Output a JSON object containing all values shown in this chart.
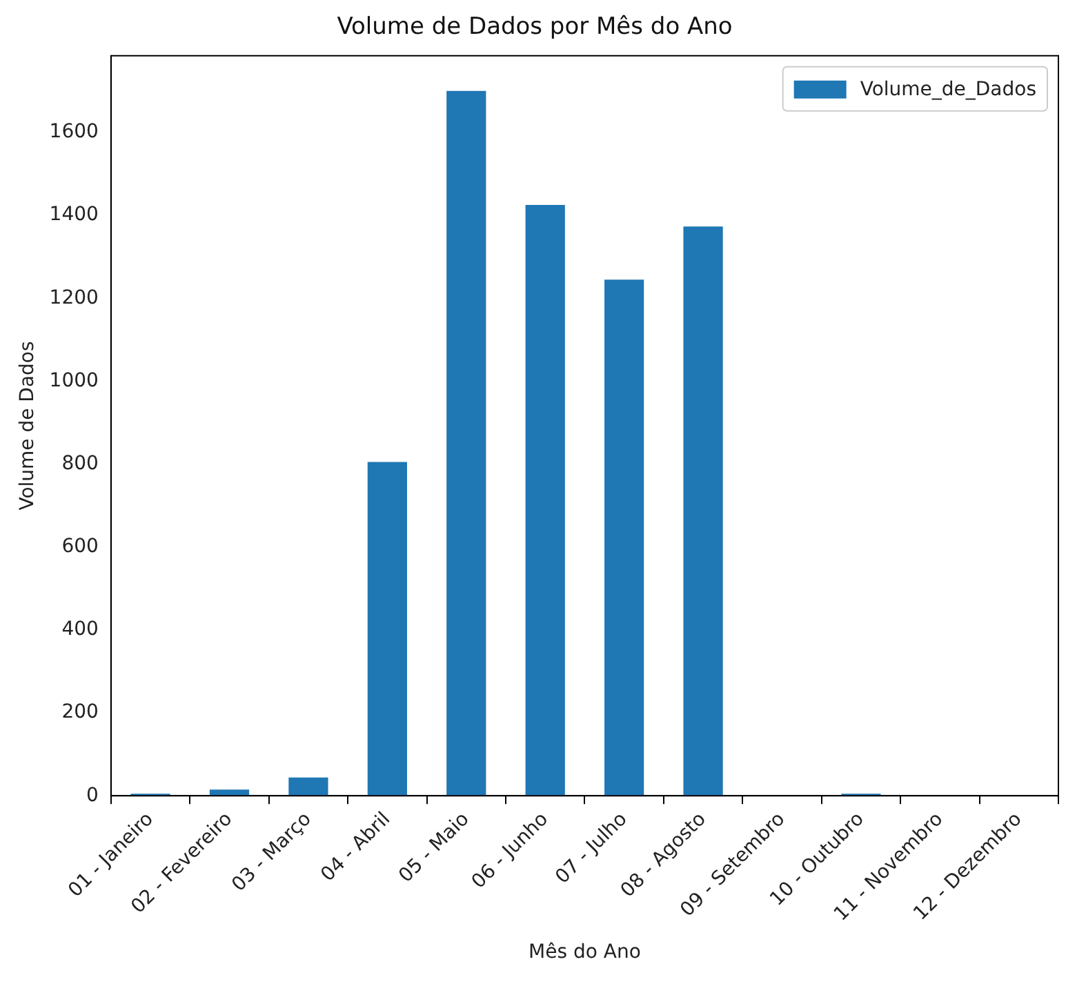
{
  "chart_data": {
    "type": "bar",
    "title": "Volume de Dados por Mês do Ano",
    "xlabel": "Mês do Ano",
    "ylabel": "Volume de Dados",
    "categories": [
      "01 - Janeiro",
      "02 - Fevereiro",
      "03 - Março",
      "04 - Abril",
      "05 - Maio",
      "06 - Junho",
      "07 - Julho",
      "08 - Agosto",
      "09 - Setembro",
      "10 - Outubro",
      "11 - Novembro",
      "12 - Dezembro"
    ],
    "series": [
      {
        "name": "Volume_de_Dados",
        "color": "#1f77b4",
        "values": [
          5,
          15,
          44,
          805,
          1700,
          1425,
          1245,
          1373,
          0,
          5,
          0,
          0
        ]
      }
    ],
    "ylim": [
      0,
      1785
    ],
    "yticks": [
      0,
      200,
      400,
      600,
      800,
      1000,
      1200,
      1400,
      1600
    ],
    "grid": false,
    "legend": "top right"
  }
}
